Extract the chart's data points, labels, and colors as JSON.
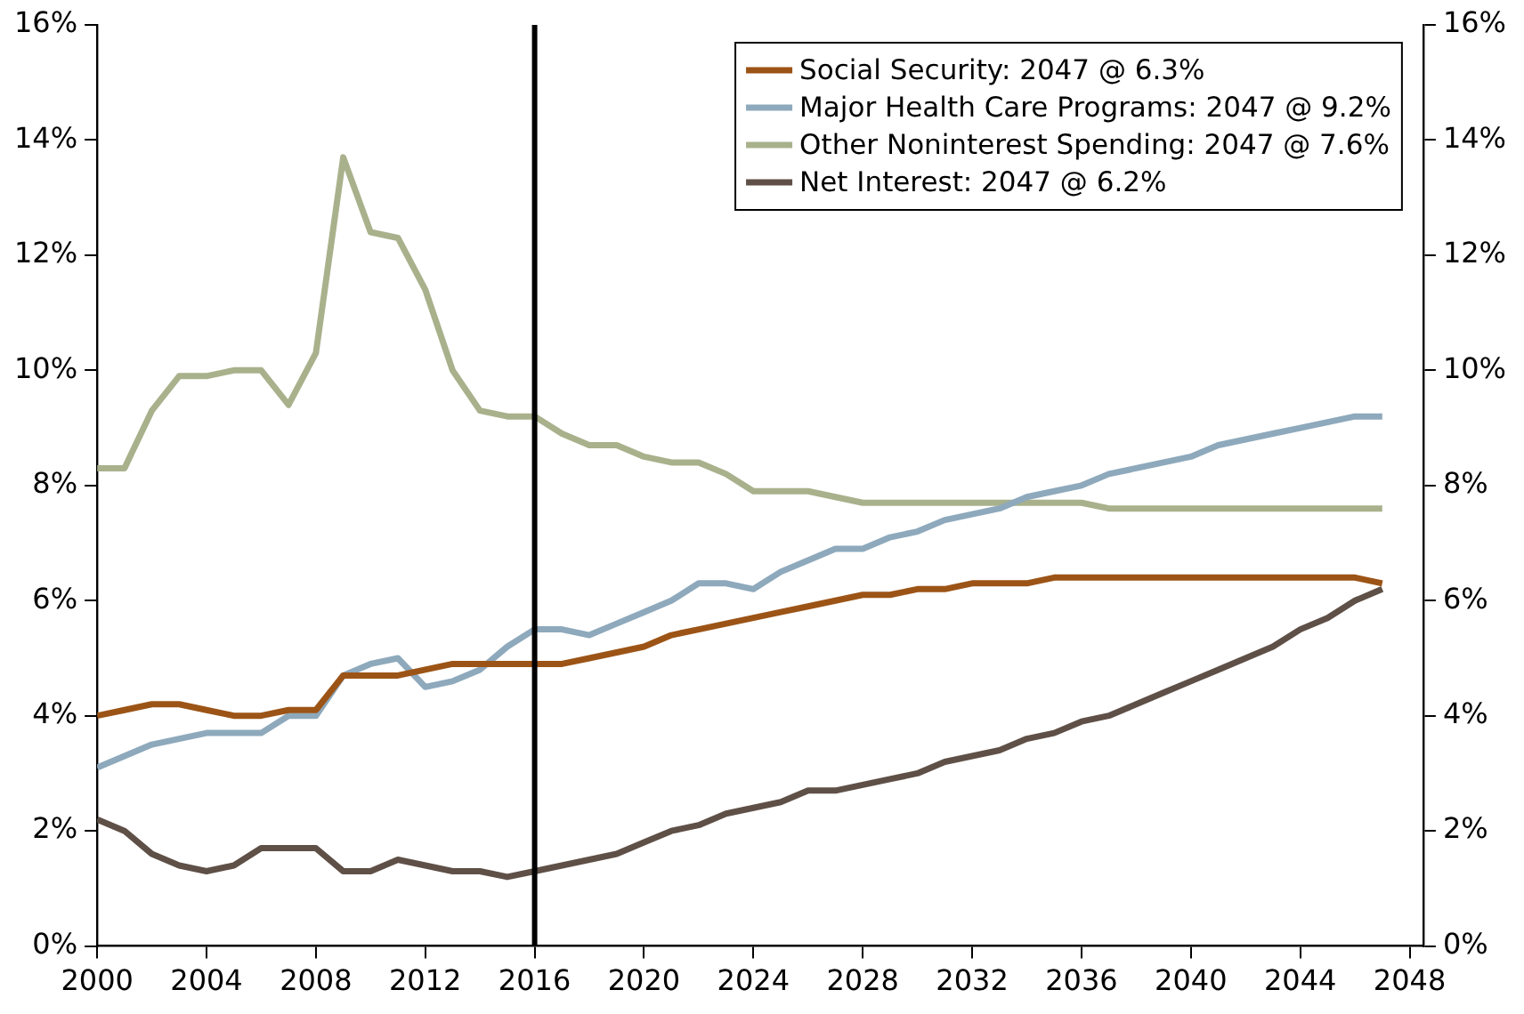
{
  "chart_data": {
    "type": "line",
    "x": [
      2000,
      2001,
      2002,
      2003,
      2004,
      2005,
      2006,
      2007,
      2008,
      2009,
      2010,
      2011,
      2012,
      2013,
      2014,
      2015,
      2016,
      2017,
      2018,
      2019,
      2020,
      2021,
      2022,
      2023,
      2024,
      2025,
      2026,
      2027,
      2028,
      2029,
      2030,
      2031,
      2032,
      2033,
      2034,
      2035,
      2036,
      2037,
      2038,
      2039,
      2040,
      2041,
      2042,
      2043,
      2044,
      2045,
      2046,
      2047
    ],
    "series": [
      {
        "name": "Social Security: 2047 @ 6.3%",
        "color": "#9c5416",
        "values": [
          4.0,
          4.1,
          4.2,
          4.2,
          4.1,
          4.0,
          4.0,
          4.1,
          4.1,
          4.7,
          4.7,
          4.7,
          4.8,
          4.9,
          4.9,
          4.9,
          4.9,
          4.9,
          5.0,
          5.1,
          5.2,
          5.4,
          5.5,
          5.6,
          5.7,
          5.8,
          5.9,
          6.0,
          6.1,
          6.1,
          6.2,
          6.2,
          6.3,
          6.3,
          6.3,
          6.4,
          6.4,
          6.4,
          6.4,
          6.4,
          6.4,
          6.4,
          6.4,
          6.4,
          6.4,
          6.4,
          6.4,
          6.3
        ]
      },
      {
        "name": "Major Health Care Programs: 2047 @ 9.2%",
        "color": "#8ea9bc",
        "values": [
          3.1,
          3.3,
          3.5,
          3.6,
          3.7,
          3.7,
          3.7,
          4.0,
          4.0,
          4.7,
          4.9,
          5.0,
          4.5,
          4.6,
          4.8,
          5.2,
          5.5,
          5.5,
          5.4,
          5.6,
          5.8,
          6.0,
          6.3,
          6.3,
          6.2,
          6.5,
          6.7,
          6.9,
          6.9,
          7.1,
          7.2,
          7.4,
          7.5,
          7.6,
          7.8,
          7.9,
          8.0,
          8.2,
          8.3,
          8.4,
          8.5,
          8.7,
          8.8,
          8.9,
          9.0,
          9.1,
          9.2,
          9.2
        ]
      },
      {
        "name": "Other Noninterest Spending: 2047 @ 7.6%",
        "color": "#a9b18c",
        "values": [
          8.3,
          8.3,
          9.3,
          9.9,
          9.9,
          10.0,
          10.0,
          9.4,
          10.3,
          13.7,
          12.4,
          12.3,
          11.4,
          10.0,
          9.3,
          9.2,
          9.2,
          8.9,
          8.7,
          8.7,
          8.5,
          8.4,
          8.4,
          8.2,
          7.9,
          7.9,
          7.9,
          7.8,
          7.7,
          7.7,
          7.7,
          7.7,
          7.7,
          7.7,
          7.7,
          7.7,
          7.7,
          7.6,
          7.6,
          7.6,
          7.6,
          7.6,
          7.6,
          7.6,
          7.6,
          7.6,
          7.6,
          7.6
        ]
      },
      {
        "name": "Net Interest: 2047 @ 6.2%",
        "color": "#5f5047",
        "values": [
          2.2,
          2.0,
          1.6,
          1.4,
          1.3,
          1.4,
          1.7,
          1.7,
          1.7,
          1.3,
          1.3,
          1.5,
          1.4,
          1.3,
          1.3,
          1.2,
          1.3,
          1.4,
          1.5,
          1.6,
          1.8,
          2.0,
          2.1,
          2.3,
          2.4,
          2.5,
          2.7,
          2.7,
          2.8,
          2.9,
          3.0,
          3.2,
          3.3,
          3.4,
          3.6,
          3.7,
          3.9,
          4.0,
          4.2,
          4.4,
          4.6,
          4.8,
          5.0,
          5.2,
          5.5,
          5.7,
          6.0,
          6.2
        ]
      }
    ],
    "xlim": [
      2000,
      2048.5
    ],
    "xticks": [
      2000,
      2004,
      2008,
      2012,
      2016,
      2020,
      2024,
      2028,
      2032,
      2036,
      2040,
      2044,
      2048
    ],
    "ylim": [
      0,
      16
    ],
    "yticks": [
      {
        "value": 0,
        "label": "0%"
      },
      {
        "value": 2,
        "label": "2%"
      },
      {
        "value": 4,
        "label": "4%"
      },
      {
        "value": 6,
        "label": "6%"
      },
      {
        "value": 8,
        "label": "8%"
      },
      {
        "value": 10,
        "label": "10%"
      },
      {
        "value": 12,
        "label": "12%"
      },
      {
        "value": 14,
        "label": "14%"
      },
      {
        "value": 16,
        "label": "16%"
      }
    ],
    "y2lim": [
      0,
      16
    ],
    "y2ticks": [
      {
        "value": 0,
        "label": "0%"
      },
      {
        "value": 2,
        "label": "2%"
      },
      {
        "value": 4,
        "label": "4%"
      },
      {
        "value": 6,
        "label": "6%"
      },
      {
        "value": 8,
        "label": "8%"
      },
      {
        "value": 10,
        "label": "10%"
      },
      {
        "value": 12,
        "label": "12%"
      },
      {
        "value": 14,
        "label": "14%"
      },
      {
        "value": 16,
        "label": "16%"
      }
    ],
    "ref_lines": [
      {
        "axis": "x",
        "value": 2016,
        "color": "#000000"
      }
    ],
    "grid": false,
    "legend": "top right",
    "marker": "none",
    "line_style": "solid"
  }
}
